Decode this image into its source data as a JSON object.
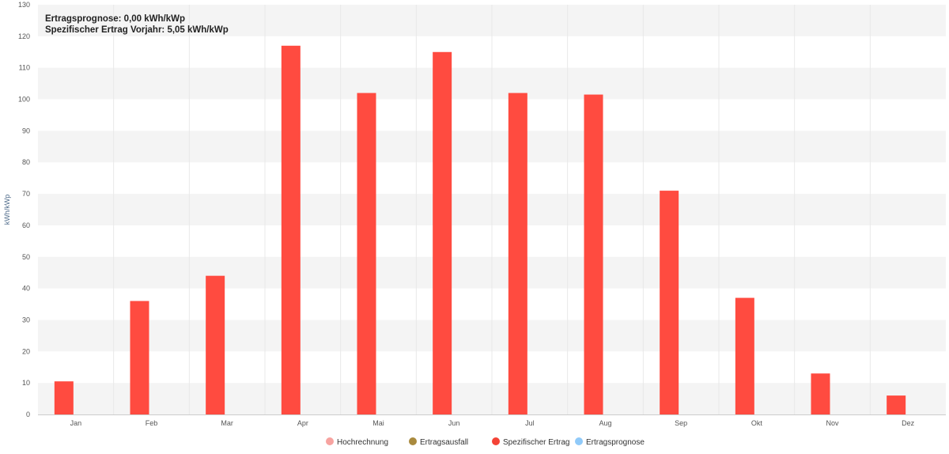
{
  "info": {
    "forecast": "Ertragsprognose: 0,00 kWh/kWp",
    "previous_year": "Spezifischer Ertrag Vorjahr: 5,05 kWh/kWp"
  },
  "chart_data": {
    "type": "bar",
    "title": "",
    "xlabel": "",
    "ylabel": "kWh/kWp",
    "ylim": [
      0,
      130
    ],
    "yticks": [
      0,
      10,
      20,
      30,
      40,
      50,
      60,
      70,
      80,
      90,
      100,
      110,
      120,
      130
    ],
    "grid": "alternating horizontal bands",
    "legend_position": "bottom-center",
    "categories": [
      "Jan",
      "Feb",
      "Mar",
      "Apr",
      "Mai",
      "Jun",
      "Jul",
      "Aug",
      "Sep",
      "Okt",
      "Nov",
      "Dez"
    ],
    "legend": [
      {
        "name": "Hochrechnung",
        "color": "#f7a3a0"
      },
      {
        "name": "Ertragsausfall",
        "color": "#a98a3e"
      },
      {
        "name": "Spezifischer Ertrag",
        "color": "#f44336"
      },
      {
        "name": "Ertragsprognose",
        "color": "#90caf9"
      }
    ],
    "series": [
      {
        "name": "Spezifischer Ertrag",
        "color": "#ff4b40",
        "values": [
          10.5,
          36,
          44,
          117,
          102,
          115,
          102,
          101.5,
          71,
          37,
          13,
          6
        ]
      }
    ]
  }
}
